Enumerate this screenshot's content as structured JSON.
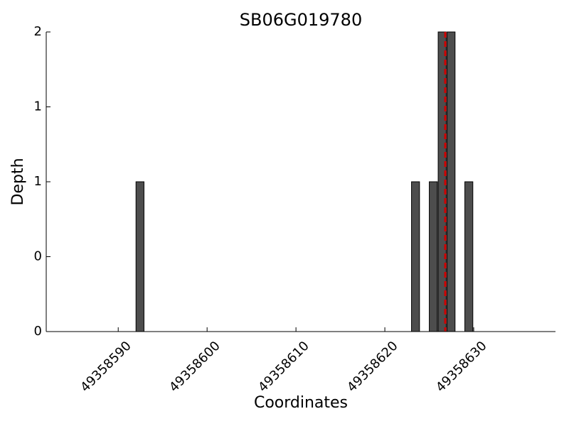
{
  "chart_data": {
    "type": "bar",
    "title": "SB06G019780",
    "x_label": "Coordinates",
    "y_label": "Depth",
    "x": [
      49358592,
      49358623,
      49358625,
      49358626,
      49358627,
      49358629
    ],
    "values": [
      1,
      1,
      1,
      2,
      2,
      1
    ],
    "color": "#4d4d4d",
    "xlim": [
      49358581.9,
      49358639.2
    ],
    "xticks": [
      49358590,
      49358600,
      49358610,
      49358620,
      49358630
    ],
    "ylim": [
      0,
      2
    ],
    "yticks": [
      {
        "value": 0,
        "label": "0"
      },
      {
        "value": 0.5,
        "label": "0"
      },
      {
        "value": 1,
        "label": "1"
      },
      {
        "value": 1.5,
        "label": "1"
      },
      {
        "value": 2,
        "label": "2"
      }
    ],
    "vline": {
      "x": 49358626.8,
      "color": "#cc0000"
    }
  }
}
